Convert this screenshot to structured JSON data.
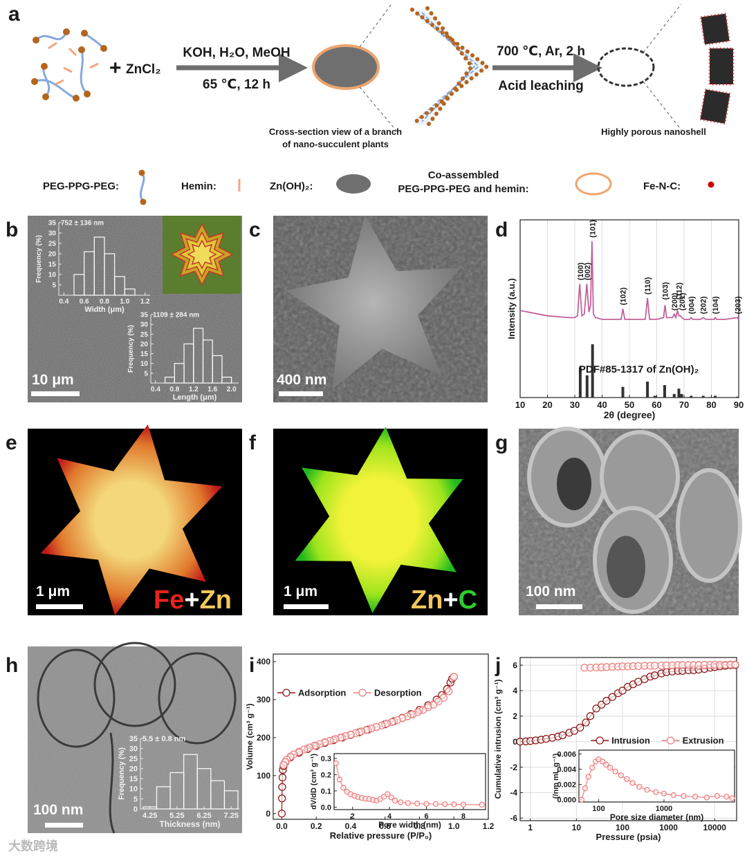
{
  "panel_labels": [
    "a",
    "b",
    "c",
    "d",
    "e",
    "f",
    "g",
    "h",
    "i",
    "j"
  ],
  "schematic": {
    "plus": "+",
    "reagent": "ZnCl₂",
    "step1_top": "KOH, H₂O, MeOH",
    "step1_bottom": "65 ℃, 12 h",
    "step2_top": "700 ℃, Ar, 2 h",
    "step2_bottom": "Acid leaching",
    "cross_section_caption": [
      "Cross-section view of a branch",
      "of nano-succulent plants"
    ],
    "nanoshell_caption": "Highly porous nanoshell"
  },
  "legend": [
    "PEG-PPG-PEG:",
    "Hemin:",
    "Zn(OH)₂:",
    [
      "Co-assembled",
      "PEG-PPG-PEG and hemin:"
    ],
    "Fe-N-C:"
  ],
  "scale_bars": [
    "10 μm",
    "400 nm",
    "1 μm",
    "1 μm",
    "100 nm",
    "100 nm"
  ],
  "element_labels": {
    "e": [
      {
        "text": "Fe",
        "color": "#e8231c"
      },
      {
        "text": "+",
        "color": "#ffffff"
      },
      {
        "text": "Zn",
        "color": "#f2c75c"
      }
    ],
    "f": [
      {
        "text": "Zn",
        "color": "#f2c75c"
      },
      {
        "text": "+",
        "color": "#ffffff"
      },
      {
        "text": "C",
        "color": "#2ecc2e"
      }
    ]
  },
  "watermark": "大数跨境",
  "chart_data": [
    {
      "type": "histogram",
      "title": "752 ± 136 nm",
      "xlabel": "Width (μm)",
      "ylabel": "Frequency (%)",
      "color": "#ffffff",
      "bins": [
        0.5,
        0.6,
        0.7,
        0.8,
        0.9,
        1.0,
        1.1
      ],
      "values": [
        10,
        21,
        28,
        20,
        9,
        3
      ],
      "xlim": [
        0.35,
        1.25
      ],
      "xticks": [
        0.4,
        0.6,
        0.8,
        {
          "value": 1.0,
          "label": "1.0"
        },
        1.2
      ],
      "ylim": [
        0,
        35
      ],
      "yticks": [
        5,
        10,
        15,
        20,
        25,
        30,
        35
      ]
    },
    {
      "type": "histogram",
      "title": "1109 ± 284 nm",
      "xlabel": "Length (μm)",
      "ylabel": "Frequency (%)",
      "color": "#ffffff",
      "bins": [
        0.6,
        0.8,
        1.0,
        1.2,
        1.4,
        1.6,
        1.8,
        2.0
      ],
      "values": [
        3,
        10,
        20,
        28,
        22,
        14,
        3
      ],
      "xlim": [
        0.3,
        2.15
      ],
      "xticks": [
        0.4,
        0.8,
        1.2,
        1.6,
        {
          "value": 2.0,
          "label": "2.0"
        }
      ],
      "ylim": [
        0,
        35
      ],
      "yticks": [
        5,
        10,
        15,
        20,
        25,
        30,
        35
      ]
    },
    {
      "type": "line",
      "xlabel": "2θ (degree)",
      "ylabel": "Intensity (a.u.)",
      "grid": true,
      "xlim": [
        10,
        90
      ],
      "xticks": [
        10,
        20,
        30,
        40,
        50,
        60,
        70,
        80,
        90
      ],
      "ylim": [
        0,
        100
      ],
      "series": [
        {
          "type": "line",
          "color": "#c2609a",
          "x": [
            10,
            20,
            28,
            30,
            31,
            31.8,
            32.6,
            33.5,
            34.4,
            35.2,
            35.8,
            36.3,
            36.8,
            37.6,
            40,
            45,
            47,
            47.6,
            48.3,
            52,
            55.8,
            56.6,
            57.4,
            60,
            62.5,
            63,
            63.6,
            65.8,
            66.4,
            67,
            67.6,
            68.1,
            68.7,
            69.2,
            70,
            72,
            72.6,
            73.2,
            76,
            77,
            78,
            81,
            81.4,
            82,
            85,
            89.6,
            90
          ],
          "values": [
            49,
            46,
            45,
            45,
            46,
            64,
            46,
            47,
            64,
            48,
            52,
            88,
            47,
            45,
            44,
            44,
            44,
            50,
            44,
            44,
            44,
            56,
            44,
            44,
            45,
            52,
            45,
            45,
            47,
            45,
            49,
            46,
            46,
            45,
            44,
            44,
            45,
            44,
            44,
            45,
            44,
            44,
            45,
            44,
            44,
            45,
            44
          ]
        },
        {
          "type": "stick",
          "color": "#333333",
          "x": [
            32,
            34.5,
            36.5,
            47.6,
            56.6,
            59.3,
            62.9,
            66.4,
            68.1,
            69.1,
            72.6,
            77,
            81.4,
            89.6
          ],
          "values": [
            17,
            12.5,
            30,
            6,
            9,
            1,
            7,
            2,
            5,
            2,
            1,
            1,
            1,
            0.5
          ]
        }
      ],
      "peak_labels": [
        {
          "label": "(100)",
          "x": 32,
          "y": 66
        },
        {
          "label": "(002)",
          "x": 34.5,
          "y": 66
        },
        {
          "label": "(101)",
          "x": 36.5,
          "y": 90
        },
        {
          "label": "(102)",
          "x": 47.6,
          "y": 52
        },
        {
          "label": "(110)",
          "x": 56.6,
          "y": 58
        },
        {
          "label": "(103)",
          "x": 63,
          "y": 55
        },
        {
          "label": "(200)",
          "x": 66.4,
          "y": 49
        },
        {
          "label": "(112)",
          "x": 68.1,
          "y": 55
        },
        {
          "label": "(201)",
          "x": 69.2,
          "y": 49
        },
        {
          "label": "(004)",
          "x": 72.6,
          "y": 47
        },
        {
          "label": "(202)",
          "x": 77,
          "y": 47
        },
        {
          "label": "(104)",
          "x": 81.4,
          "y": 47
        },
        {
          "label": "(203)",
          "x": 89.6,
          "y": 47
        }
      ],
      "annotations": [
        {
          "text": "PDF#85-1317 of Zn(OH)₂",
          "x": 31.5,
          "y": 14
        }
      ]
    },
    {
      "type": "histogram",
      "title": "5.5 ± 0.8 nm",
      "xlabel": "Thickness (nm)",
      "ylabel": "Frequency (%)",
      "color": "#ffffff",
      "bins": [
        4.0,
        4.5,
        5.0,
        5.5,
        6.0,
        6.5,
        7.0,
        7.5
      ],
      "values": [
        1,
        11,
        18,
        27,
        20,
        14,
        9
      ],
      "xlim": [
        3.9,
        7.55
      ],
      "xticks": [
        4.25,
        5.25,
        6.25,
        7.25
      ],
      "ylim": [
        0,
        35
      ],
      "yticks": [
        0,
        5,
        10,
        15,
        20,
        25,
        30,
        35
      ]
    },
    {
      "type": "line",
      "xlabel": "Relative pressure (P/P₀)",
      "ylabel": "Volume (cm³ g⁻¹)",
      "legend": "upper left",
      "xlim": [
        -0.05,
        1.2
      ],
      "xticks": [
        {
          "value": 0,
          "label": "0.0"
        },
        0.2,
        0.4,
        0.6,
        0.8,
        {
          "value": 1,
          "label": "1.0"
        },
        1.2
      ],
      "ylim": [
        -15,
        420
      ],
      "yticks": [
        0,
        100,
        200,
        300,
        400
      ],
      "series": [
        {
          "name": "Adsorption",
          "type": "line",
          "marker": "circle",
          "color": "#8b1a1a",
          "x": [
            0.0,
            0.001,
            0.002,
            0.004,
            0.006,
            0.01,
            0.02,
            0.05,
            0.1,
            0.15,
            0.2,
            0.25,
            0.3,
            0.35,
            0.4,
            0.45,
            0.5,
            0.55,
            0.6,
            0.65,
            0.7,
            0.75,
            0.8,
            0.85,
            0.9,
            0.93,
            0.96,
            0.98,
            0.99,
            1.0
          ],
          "values": [
            0,
            40,
            70,
            95,
            115,
            125,
            135,
            148,
            160,
            170,
            178,
            186,
            193,
            200,
            207,
            214,
            221,
            228,
            235,
            243,
            252,
            262,
            273,
            285,
            300,
            312,
            328,
            345,
            355,
            360
          ]
        },
        {
          "name": "Desorption",
          "type": "line",
          "marker": "circle",
          "color": "#ef7f7f",
          "x": [
            1.0,
            0.97,
            0.94,
            0.91,
            0.88,
            0.85,
            0.82,
            0.79,
            0.76,
            0.73,
            0.7,
            0.67,
            0.64,
            0.61,
            0.58,
            0.55,
            0.52,
            0.49,
            0.46,
            0.43,
            0.4,
            0.37,
            0.34,
            0.31,
            0.28,
            0.25,
            0.22,
            0.19,
            0.16,
            0.13,
            0.1,
            0.07,
            0.05,
            0.03,
            0.02,
            0.01
          ],
          "values": [
            360,
            322,
            305,
            295,
            287,
            280,
            273,
            267,
            261,
            256,
            251,
            246,
            241,
            237,
            232,
            228,
            224,
            220,
            216,
            212,
            208,
            204,
            200,
            196,
            192,
            188,
            183,
            179,
            174,
            169,
            163,
            156,
            150,
            142,
            136,
            128
          ]
        }
      ]
    },
    {
      "type": "line",
      "xlabel": "Pore width (nm)",
      "ylabel": "dV/dD (cm³ g⁻¹)",
      "xlim": [
        1,
        9.2
      ],
      "xticks": [
        2,
        4,
        6,
        8
      ],
      "ylim": [
        -0.015,
        0.33
      ],
      "yticks": [
        {
          "value": 0,
          "label": "0.0"
        },
        0.1,
        0.2,
        0.3
      ],
      "series": [
        {
          "type": "line",
          "marker": "circle",
          "color": "#ef7f7f",
          "x": [
            1.1,
            1.3,
            1.5,
            1.7,
            1.9,
            2.1,
            2.3,
            2.5,
            2.7,
            2.9,
            3.1,
            3.3,
            3.5,
            3.7,
            3.9,
            4.1,
            4.3,
            4.6,
            5,
            5.5,
            6,
            6.5,
            7,
            7.5,
            8,
            9
          ],
          "values": [
            0.27,
            0.17,
            0.12,
            0.095,
            0.08,
            0.07,
            0.062,
            0.057,
            0.052,
            0.05,
            0.045,
            0.04,
            0.05,
            0.065,
            0.08,
            0.06,
            0.04,
            0.03,
            0.025,
            0.022,
            0.02,
            0.02,
            0.018,
            0.017,
            0.016,
            0.015
          ]
        }
      ]
    },
    {
      "type": "line",
      "xlabel": "Pressure (psia)",
      "ylabel": "Cumulative intrusion (cm³ g⁻¹)",
      "legend": "center right",
      "grid": true,
      "xscale": "log",
      "xlim": [
        0.6,
        30000
      ],
      "xticks": [
        1,
        10,
        100,
        1000,
        10000
      ],
      "ylim": [
        -6.2,
        6.6
      ],
      "yticks": [
        -6,
        -4,
        -2,
        0,
        2,
        4,
        6
      ],
      "series": [
        {
          "name": "Intrusion",
          "type": "line",
          "marker": "circle",
          "color": "#8b1a1a",
          "x": [
            0.6,
            0.8,
            1,
            1.3,
            1.7,
            2.2,
            3,
            4,
            5,
            7,
            9,
            12,
            16,
            20,
            27,
            35,
            45,
            60,
            80,
            100,
            130,
            170,
            220,
            300,
            400,
            500,
            700,
            900,
            1200,
            1600,
            2000,
            2700,
            3500,
            4500,
            6000,
            8000,
            10000,
            13000,
            17000,
            22000,
            28000
          ],
          "values": [
            0,
            0.02,
            0.05,
            0.1,
            0.15,
            0.22,
            0.3,
            0.4,
            0.5,
            0.7,
            0.85,
            1.1,
            1.5,
            2.0,
            2.6,
            2.9,
            3.2,
            3.5,
            3.8,
            4.0,
            4.3,
            4.5,
            4.7,
            4.9,
            5.1,
            5.2,
            5.35,
            5.45,
            5.5,
            5.55,
            5.55,
            5.6,
            5.6,
            5.65,
            5.7,
            5.8,
            5.85,
            5.9,
            5.95,
            6.0,
            6.0
          ]
        },
        {
          "name": "Extrusion",
          "type": "line",
          "marker": "circle",
          "color": "#ef7f7f",
          "x": [
            15,
            20,
            27,
            35,
            45,
            60,
            80,
            100,
            130,
            170,
            220,
            300,
            400,
            500,
            700,
            900,
            1200,
            1600,
            2000,
            2700,
            3500,
            4500,
            6000,
            8000,
            10000,
            13000,
            17000,
            22000,
            28000
          ],
          "values": [
            5.8,
            5.8,
            5.82,
            5.83,
            5.85,
            5.87,
            5.88,
            5.9,
            5.9,
            5.92,
            5.93,
            5.95,
            5.95,
            5.96,
            5.97,
            5.98,
            5.98,
            6.0,
            6.0,
            6.0,
            6.0,
            6.0,
            6.02,
            6.02,
            6.03,
            6.03,
            6.03,
            6.05,
            6.05
          ]
        }
      ]
    },
    {
      "type": "line",
      "xlabel": "Pore size diameter (nm)",
      "ylabel": "(/nm mL g⁻¹)",
      "xscale": "log",
      "xlim": [
        50,
        12000
      ],
      "xticks": [
        100,
        1000
      ],
      "ylim": [
        -0.0003,
        0.0065
      ],
      "yticks": [
        {
          "value": 0,
          "label": "0.000"
        },
        0.002,
        0.004,
        0.006
      ],
      "series": [
        {
          "type": "line",
          "marker": "circle",
          "color": "#ef7f7f",
          "x": [
            55,
            62,
            70,
            80,
            90,
            100,
            115,
            130,
            150,
            180,
            220,
            270,
            330,
            420,
            550,
            750,
            1000,
            1400,
            2000,
            3000,
            4500,
            6500,
            9000,
            11000
          ],
          "values": [
            0,
            0.0015,
            0.003,
            0.0042,
            0.005,
            0.0053,
            0.005,
            0.0046,
            0.0042,
            0.0037,
            0.0032,
            0.0027,
            0.0022,
            0.0017,
            0.0013,
            0.001,
            0.0008,
            0.0006,
            0.0005,
            0.0004,
            0.0003,
            0.0005,
            0.0004,
            0.0002
          ]
        }
      ]
    }
  ]
}
